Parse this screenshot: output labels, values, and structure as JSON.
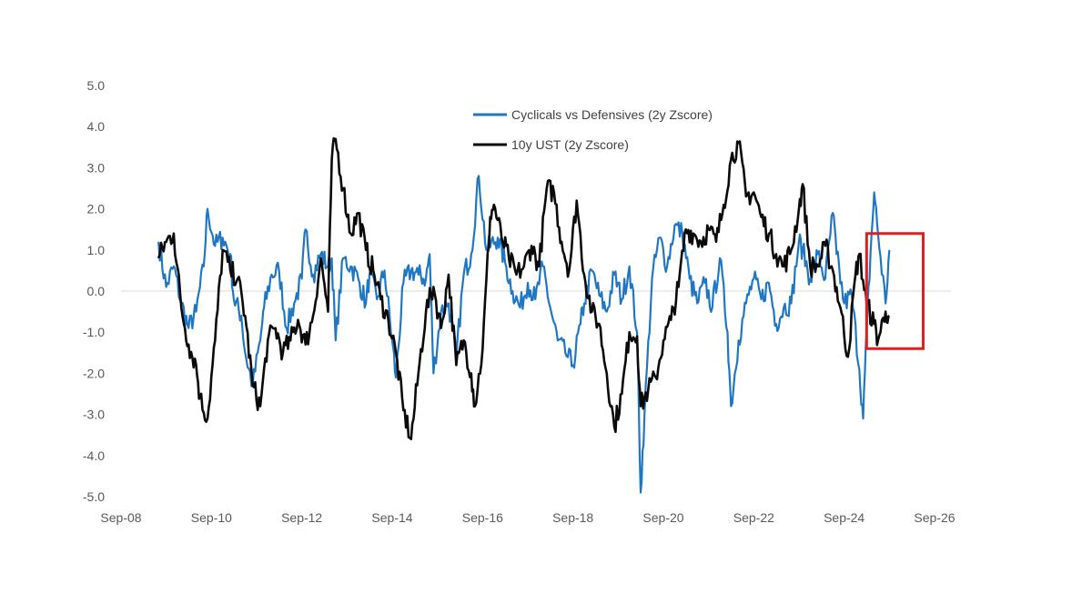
{
  "chart_data": {
    "type": "line",
    "title": "",
    "xlabel": "",
    "ylabel": "",
    "ylim": [
      -5.0,
      5.0
    ],
    "y_ticks": [
      "5.0",
      "4.0",
      "3.0",
      "2.0",
      "1.0",
      "0.0",
      "-1.0",
      "-2.0",
      "-3.0",
      "-4.0",
      "-5.0"
    ],
    "x_ticks": [
      "Sep-08",
      "Sep-10",
      "Sep-12",
      "Sep-14",
      "Sep-16",
      "Sep-18",
      "Sep-20",
      "Sep-22",
      "Sep-24",
      "Sep-26"
    ],
    "legend_position": "top-center",
    "grid": false,
    "highlight_box": {
      "x_range": [
        "2025-03",
        "2026-06"
      ],
      "y_range": [
        -1.4,
        1.4
      ],
      "color": "#e02020"
    },
    "series": [
      {
        "name": "Cyclicals vs Defensives (2y Zscore)",
        "color": "#1f77c4",
        "points": [
          [
            "2009-07",
            1.2
          ],
          [
            "2009-09",
            0.1
          ],
          [
            "2009-11",
            0.6
          ],
          [
            "2010-01",
            -0.3
          ],
          [
            "2010-03",
            -0.9
          ],
          [
            "2010-05",
            -0.5
          ],
          [
            "2010-07",
            0.6
          ],
          [
            "2010-08",
            2.0
          ],
          [
            "2010-10",
            1.1
          ],
          [
            "2010-12",
            1.3
          ],
          [
            "2011-02",
            0.9
          ],
          [
            "2011-03",
            -0.2
          ],
          [
            "2011-05",
            -0.6
          ],
          [
            "2011-06",
            -1.5
          ],
          [
            "2011-08",
            -2.3
          ],
          [
            "2011-10",
            -1.2
          ],
          [
            "2011-11",
            -0.4
          ],
          [
            "2012-01",
            0.4
          ],
          [
            "2012-03",
            0.5
          ],
          [
            "2012-05",
            -0.9
          ],
          [
            "2012-07",
            -0.3
          ],
          [
            "2012-09",
            0.3
          ],
          [
            "2012-10",
            1.5
          ],
          [
            "2012-12",
            0.4
          ],
          [
            "2013-02",
            0.9
          ],
          [
            "2013-04",
            0.6
          ],
          [
            "2013-05",
            0.8
          ],
          [
            "2013-06",
            -1.2
          ],
          [
            "2013-08",
            0.8
          ],
          [
            "2013-10",
            0.6
          ],
          [
            "2013-12",
            0.3
          ],
          [
            "2014-02",
            -0.3
          ],
          [
            "2014-03",
            0.4
          ],
          [
            "2014-05",
            -0.2
          ],
          [
            "2014-07",
            0.5
          ],
          [
            "2014-09",
            -1.2
          ],
          [
            "2014-10",
            -2.1
          ],
          [
            "2014-12",
            0.2
          ],
          [
            "2015-02",
            0.5
          ],
          [
            "2015-04",
            0.4
          ],
          [
            "2015-06",
            0.3
          ],
          [
            "2015-07",
            0.9
          ],
          [
            "2015-08",
            -2.0
          ],
          [
            "2015-10",
            -0.5
          ],
          [
            "2015-12",
            -0.3
          ],
          [
            "2016-02",
            -1.6
          ],
          [
            "2016-04",
            0.4
          ],
          [
            "2016-06",
            0.9
          ],
          [
            "2016-08",
            2.8
          ],
          [
            "2016-10",
            1.0
          ],
          [
            "2017-01",
            1.3
          ],
          [
            "2017-03",
            0.7
          ],
          [
            "2017-05",
            0.0
          ],
          [
            "2017-07",
            -0.4
          ],
          [
            "2017-09",
            0.2
          ],
          [
            "2017-11",
            -0.2
          ],
          [
            "2018-01",
            0.6
          ],
          [
            "2018-03",
            -0.4
          ],
          [
            "2018-05",
            -1.2
          ],
          [
            "2018-07",
            -1.5
          ],
          [
            "2018-09",
            -1.8
          ],
          [
            "2018-11",
            -0.8
          ],
          [
            "2018-12",
            -0.3
          ],
          [
            "2019-02",
            0.5
          ],
          [
            "2019-04",
            -0.1
          ],
          [
            "2019-06",
            -0.5
          ],
          [
            "2019-08",
            0.4
          ],
          [
            "2019-10",
            -0.2
          ],
          [
            "2019-12",
            0.6
          ],
          [
            "2020-02",
            -1.0
          ],
          [
            "2020-03",
            -4.9
          ],
          [
            "2020-04",
            -3.0
          ],
          [
            "2020-06",
            0.3
          ],
          [
            "2020-08",
            1.3
          ],
          [
            "2020-10",
            0.6
          ],
          [
            "2020-12",
            1.6
          ],
          [
            "2021-02",
            1.4
          ],
          [
            "2021-04",
            0.3
          ],
          [
            "2021-06",
            -0.3
          ],
          [
            "2021-08",
            0.2
          ],
          [
            "2021-10",
            -0.4
          ],
          [
            "2021-12",
            0.8
          ],
          [
            "2022-02",
            -1.0
          ],
          [
            "2022-03",
            -2.8
          ],
          [
            "2022-05",
            -1.2
          ],
          [
            "2022-07",
            -0.3
          ],
          [
            "2022-09",
            0.3
          ],
          [
            "2022-11",
            -0.2
          ],
          [
            "2023-01",
            0.2
          ],
          [
            "2023-03",
            -0.8
          ],
          [
            "2023-05",
            -0.4
          ],
          [
            "2023-07",
            -0.3
          ],
          [
            "2023-09",
            1.2
          ],
          [
            "2023-10",
            1.0
          ],
          [
            "2023-12",
            0.3
          ],
          [
            "2024-02",
            0.9
          ],
          [
            "2024-04",
            0.3
          ],
          [
            "2024-06",
            1.9
          ],
          [
            "2024-07",
            0.9
          ],
          [
            "2024-09",
            -0.3
          ],
          [
            "2024-11",
            -0.1
          ],
          [
            "2025-01",
            -1.9
          ],
          [
            "2025-02",
            -3.1
          ],
          [
            "2025-03",
            -1.0
          ],
          [
            "2025-04",
            0.9
          ],
          [
            "2025-05",
            2.4
          ],
          [
            "2025-06",
            1.4
          ],
          [
            "2025-08",
            -0.3
          ],
          [
            "2025-09",
            1.0
          ]
        ]
      },
      {
        "name": "10y UST (2y Zscore)",
        "color": "#0a0a0a",
        "points": [
          [
            "2009-07",
            0.8
          ],
          [
            "2009-09",
            1.2
          ],
          [
            "2009-11",
            1.4
          ],
          [
            "2010-01",
            -0.4
          ],
          [
            "2010-03",
            -1.3
          ],
          [
            "2010-05",
            -1.8
          ],
          [
            "2010-06",
            -2.6
          ],
          [
            "2010-08",
            -3.1
          ],
          [
            "2010-10",
            -1.2
          ],
          [
            "2010-12",
            1.0
          ],
          [
            "2011-02",
            0.5
          ],
          [
            "2011-04",
            0.3
          ],
          [
            "2011-06",
            -0.6
          ],
          [
            "2011-08",
            -2.3
          ],
          [
            "2011-10",
            -2.8
          ],
          [
            "2011-12",
            -1.2
          ],
          [
            "2012-02",
            -0.9
          ],
          [
            "2012-04",
            -1.5
          ],
          [
            "2012-06",
            -1.2
          ],
          [
            "2012-08",
            -0.7
          ],
          [
            "2012-10",
            -1.3
          ],
          [
            "2012-12",
            -0.6
          ],
          [
            "2013-02",
            0.8
          ],
          [
            "2013-04",
            -0.5
          ],
          [
            "2013-05",
            3.2
          ],
          [
            "2013-06",
            3.7
          ],
          [
            "2013-08",
            2.5
          ],
          [
            "2013-10",
            1.4
          ],
          [
            "2013-12",
            1.9
          ],
          [
            "2014-02",
            1.0
          ],
          [
            "2014-04",
            0.5
          ],
          [
            "2014-06",
            -0.2
          ],
          [
            "2014-08",
            -0.7
          ],
          [
            "2014-10",
            -1.5
          ],
          [
            "2014-12",
            -2.9
          ],
          [
            "2015-02",
            -3.6
          ],
          [
            "2015-04",
            -2.0
          ],
          [
            "2015-06",
            -0.5
          ],
          [
            "2015-08",
            0.1
          ],
          [
            "2015-10",
            -0.9
          ],
          [
            "2015-12",
            0.4
          ],
          [
            "2016-02",
            -1.8
          ],
          [
            "2016-04",
            -1.2
          ],
          [
            "2016-06",
            -2.0
          ],
          [
            "2016-07",
            -2.8
          ],
          [
            "2016-09",
            -1.4
          ],
          [
            "2016-11",
            1.8
          ],
          [
            "2016-12",
            2.1
          ],
          [
            "2017-02",
            1.3
          ],
          [
            "2017-04",
            0.8
          ],
          [
            "2017-06",
            0.4
          ],
          [
            "2017-08",
            0.6
          ],
          [
            "2017-10",
            1.1
          ],
          [
            "2017-12",
            0.6
          ],
          [
            "2018-02",
            2.5
          ],
          [
            "2018-04",
            2.4
          ],
          [
            "2018-06",
            1.2
          ],
          [
            "2018-08",
            0.5
          ],
          [
            "2018-10",
            2.2
          ],
          [
            "2018-12",
            0.4
          ],
          [
            "2019-02",
            -0.5
          ],
          [
            "2019-04",
            -0.8
          ],
          [
            "2019-06",
            -2.0
          ],
          [
            "2019-08",
            -3.3
          ],
          [
            "2019-10",
            -2.5
          ],
          [
            "2019-12",
            -1.0
          ],
          [
            "2020-02",
            -1.1
          ],
          [
            "2020-03",
            -2.8
          ],
          [
            "2020-05",
            -2.4
          ],
          [
            "2020-07",
            -2.1
          ],
          [
            "2020-09",
            -1.2
          ],
          [
            "2020-11",
            -0.7
          ],
          [
            "2021-01",
            0.1
          ],
          [
            "2021-03",
            1.5
          ],
          [
            "2021-05",
            1.4
          ],
          [
            "2021-07",
            1.2
          ],
          [
            "2021-09",
            1.5
          ],
          [
            "2021-11",
            1.2
          ],
          [
            "2022-01",
            2.1
          ],
          [
            "2022-03",
            3.2
          ],
          [
            "2022-05",
            3.6
          ],
          [
            "2022-07",
            2.3
          ],
          [
            "2022-09",
            2.4
          ],
          [
            "2022-11",
            1.8
          ],
          [
            "2023-01",
            1.4
          ],
          [
            "2023-03",
            0.9
          ],
          [
            "2023-05",
            0.6
          ],
          [
            "2023-07",
            1.0
          ],
          [
            "2023-09",
            2.0
          ],
          [
            "2023-10",
            2.6
          ],
          [
            "2023-12",
            0.6
          ],
          [
            "2024-02",
            0.6
          ],
          [
            "2024-04",
            1.1
          ],
          [
            "2024-06",
            0.5
          ],
          [
            "2024-08",
            -0.4
          ],
          [
            "2024-10",
            -1.6
          ],
          [
            "2024-12",
            0.4
          ],
          [
            "2025-01",
            0.9
          ],
          [
            "2025-03",
            -0.3
          ],
          [
            "2025-05",
            -0.8
          ],
          [
            "2025-06",
            -1.2
          ],
          [
            "2025-08",
            -0.5
          ],
          [
            "2025-09",
            -0.6
          ]
        ]
      }
    ]
  }
}
